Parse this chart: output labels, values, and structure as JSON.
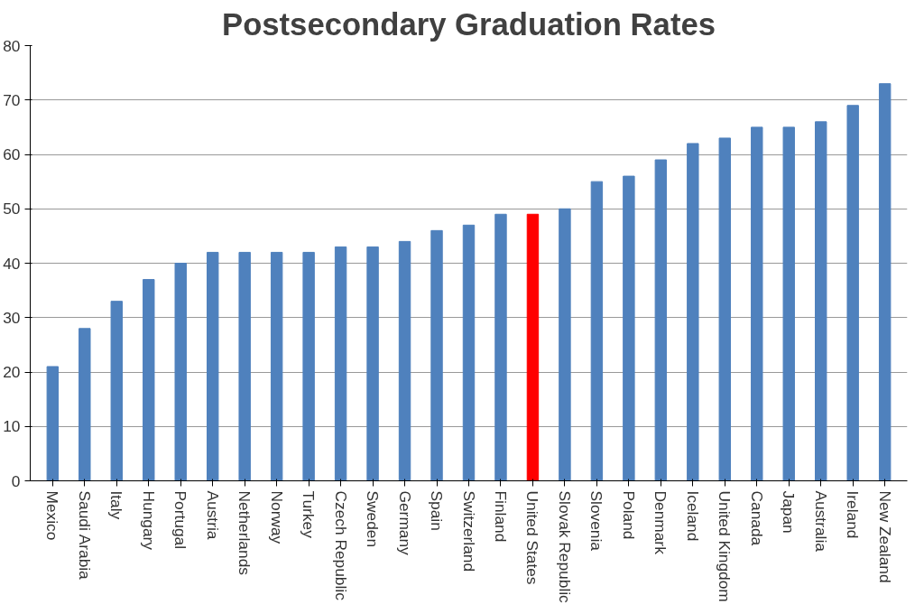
{
  "chart_data": {
    "type": "bar",
    "title": "Postsecondary Graduation Rates",
    "categories": [
      "Mexico",
      "Saudi Arabia",
      "Italy",
      "Hungary",
      "Portugal",
      "Austria",
      "Netherlands",
      "Norway",
      "Turkey",
      "Czech Republic",
      "Sweden",
      "Germany",
      "Spain",
      "Switzerland",
      "Finland",
      "United States",
      "Slovak Republic",
      "Slovenia",
      "Poland",
      "Denmark",
      "Iceland",
      "United Kingdom",
      "Canada",
      "Japan",
      "Australia",
      "Ireland",
      "New Zealand"
    ],
    "values": [
      21,
      28,
      33,
      37,
      40,
      42,
      42,
      42,
      42,
      43,
      43,
      44,
      46,
      47,
      49,
      49,
      50,
      55,
      56,
      59,
      62,
      63,
      65,
      65,
      66,
      69,
      73
    ],
    "colors": [
      "#4f81bd",
      "#4f81bd",
      "#4f81bd",
      "#4f81bd",
      "#4f81bd",
      "#4f81bd",
      "#4f81bd",
      "#4f81bd",
      "#4f81bd",
      "#4f81bd",
      "#4f81bd",
      "#4f81bd",
      "#4f81bd",
      "#4f81bd",
      "#4f81bd",
      "#ff0000",
      "#4f81bd",
      "#4f81bd",
      "#4f81bd",
      "#4f81bd",
      "#4f81bd",
      "#4f81bd",
      "#4f81bd",
      "#4f81bd",
      "#4f81bd",
      "#4f81bd",
      "#4f81bd"
    ],
    "ylim": [
      0,
      80
    ],
    "yticks": [
      0,
      10,
      20,
      30,
      40,
      50,
      60,
      70,
      80
    ],
    "grid": "y"
  }
}
